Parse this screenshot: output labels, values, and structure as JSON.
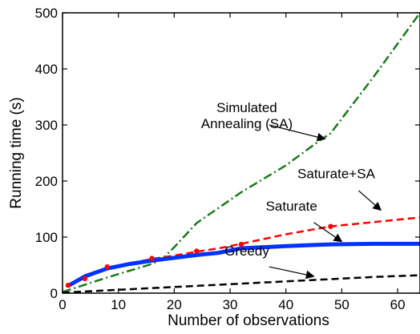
{
  "chart_data": {
    "type": "line",
    "xlabel": "Number of observations",
    "ylabel": "Running time (s)",
    "xlim": [
      0,
      64
    ],
    "ylim": [
      0,
      500
    ],
    "xticks": [
      0,
      10,
      20,
      30,
      40,
      50,
      60
    ],
    "yticks": [
      0,
      100,
      200,
      300,
      400,
      500
    ],
    "grid": false,
    "series": [
      {
        "name": "Simulated Annealing (SA)",
        "color": "#1a7a1a",
        "dash": "dash-dot",
        "points": [
          [
            0,
            2
          ],
          [
            4,
            15
          ],
          [
            8,
            28
          ],
          [
            12,
            40
          ],
          [
            16,
            52
          ],
          [
            18,
            62
          ],
          [
            20,
            82
          ],
          [
            24,
            125
          ],
          [
            32,
            180
          ],
          [
            40,
            228
          ],
          [
            46,
            272
          ],
          [
            48,
            285
          ],
          [
            56,
            390
          ],
          [
            64,
            500
          ]
        ]
      },
      {
        "name": "Saturate+SA",
        "color": "#ff0000",
        "dash": "dashed",
        "points": [
          [
            1,
            13
          ],
          [
            4,
            27
          ],
          [
            8,
            45
          ],
          [
            12,
            53
          ],
          [
            16,
            61
          ],
          [
            20,
            67
          ],
          [
            24,
            74
          ],
          [
            28,
            80
          ],
          [
            32,
            88
          ],
          [
            40,
            105
          ],
          [
            48,
            119
          ],
          [
            56,
            127
          ],
          [
            64,
            135
          ]
        ]
      },
      {
        "name": "Saturate",
        "color": "#0033ff",
        "dash": "solid",
        "points": [
          [
            1,
            13
          ],
          [
            4,
            30
          ],
          [
            8,
            44
          ],
          [
            12,
            52
          ],
          [
            16,
            58
          ],
          [
            20,
            63
          ],
          [
            24,
            68
          ],
          [
            28,
            72
          ],
          [
            32,
            80
          ],
          [
            40,
            84
          ],
          [
            48,
            87
          ],
          [
            56,
            88
          ],
          [
            64,
            88
          ]
        ]
      },
      {
        "name": "Greedy",
        "color": "#000000",
        "dash": "dashed",
        "points": [
          [
            0,
            1
          ],
          [
            8,
            5
          ],
          [
            16,
            9
          ],
          [
            24,
            13
          ],
          [
            32,
            17
          ],
          [
            40,
            21
          ],
          [
            48,
            25
          ],
          [
            56,
            29
          ],
          [
            64,
            32
          ]
        ]
      }
    ],
    "markers": {
      "color": "#ff0000",
      "points": [
        [
          1,
          14
        ],
        [
          4,
          26
        ],
        [
          8,
          47
        ],
        [
          16,
          62
        ],
        [
          24,
          75
        ],
        [
          32,
          87
        ],
        [
          48,
          119
        ]
      ]
    },
    "annotations": [
      {
        "text": [
          "Simulated",
          "Annealing (SA)"
        ],
        "text_at": [
          33,
          323
        ],
        "arrow_from": [
          37,
          300
        ],
        "arrow_to": [
          47,
          275
        ]
      },
      {
        "text": [
          "Saturate+SA"
        ],
        "text_at": [
          49,
          205
        ],
        "arrow_from": [
          53,
          183
        ],
        "arrow_to": [
          57,
          148
        ]
      },
      {
        "text": [
          "Saturate"
        ],
        "text_at": [
          41,
          147
        ],
        "arrow_from": [
          45,
          126
        ],
        "arrow_to": [
          50,
          92
        ]
      },
      {
        "text": [
          "Greedy"
        ],
        "text_at": [
          33,
          67
        ],
        "arrow_from": [
          37,
          47
        ],
        "arrow_to": [
          45,
          30
        ]
      }
    ]
  }
}
